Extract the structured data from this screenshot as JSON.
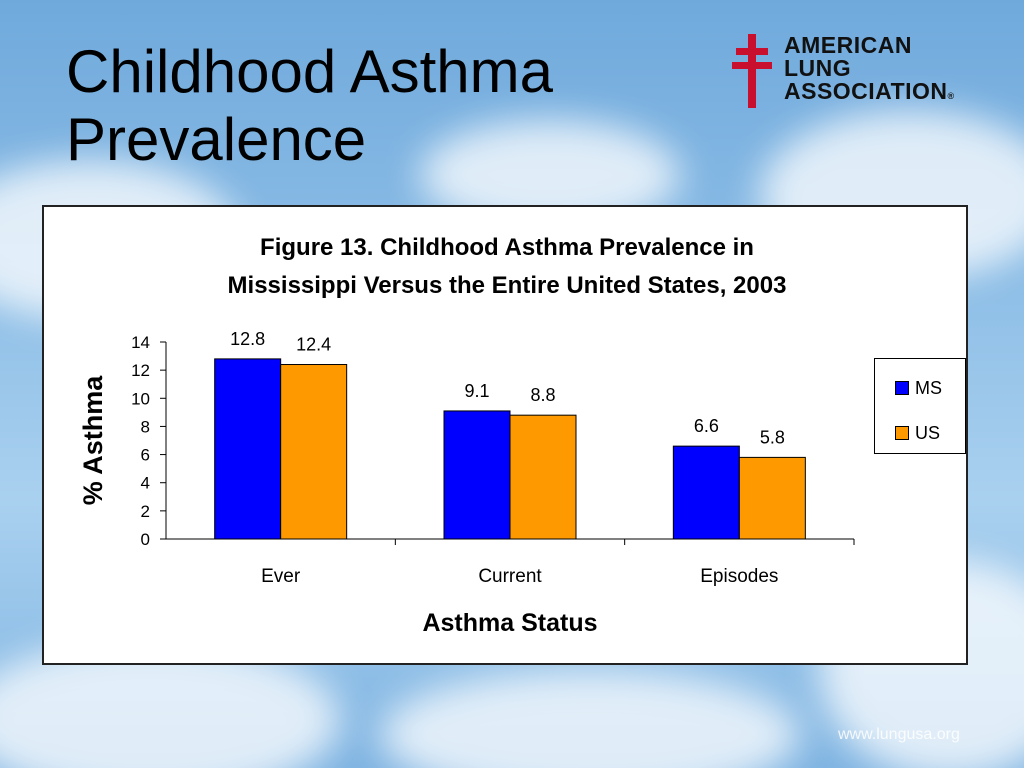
{
  "slide": {
    "title_line1": "Childhood Asthma",
    "title_line2": "Prevalence",
    "footer_url": "www.lungusa.org"
  },
  "logo": {
    "line1": "AMERICAN",
    "line2": "LUNG",
    "line3": "ASSOCIATION",
    "mark": "®",
    "cross_color": "#c8102e"
  },
  "chart_data": {
    "type": "bar",
    "title": "Figure 13. Childhood Asthma Prevalence in Mississippi Versus the Entire United States, 2003",
    "title_line1": "Figure 13. Childhood Asthma Prevalence in",
    "title_line2": "Mississippi Versus the Entire United States, 2003",
    "categories": [
      "Ever",
      "Current",
      "Episodes"
    ],
    "series": [
      {
        "name": "MS",
        "values": [
          12.8,
          9.1,
          6.6
        ],
        "color": "#0000ff"
      },
      {
        "name": "US",
        "values": [
          12.4,
          8.8,
          5.8
        ],
        "color": "#ff9900"
      }
    ],
    "xlabel": "Asthma Status",
    "ylabel": "% Asthma",
    "ylim": [
      0,
      14
    ],
    "yticks": [
      0,
      2,
      4,
      6,
      8,
      10,
      12,
      14
    ],
    "data_labels": true,
    "legend": "right",
    "grid": false
  }
}
